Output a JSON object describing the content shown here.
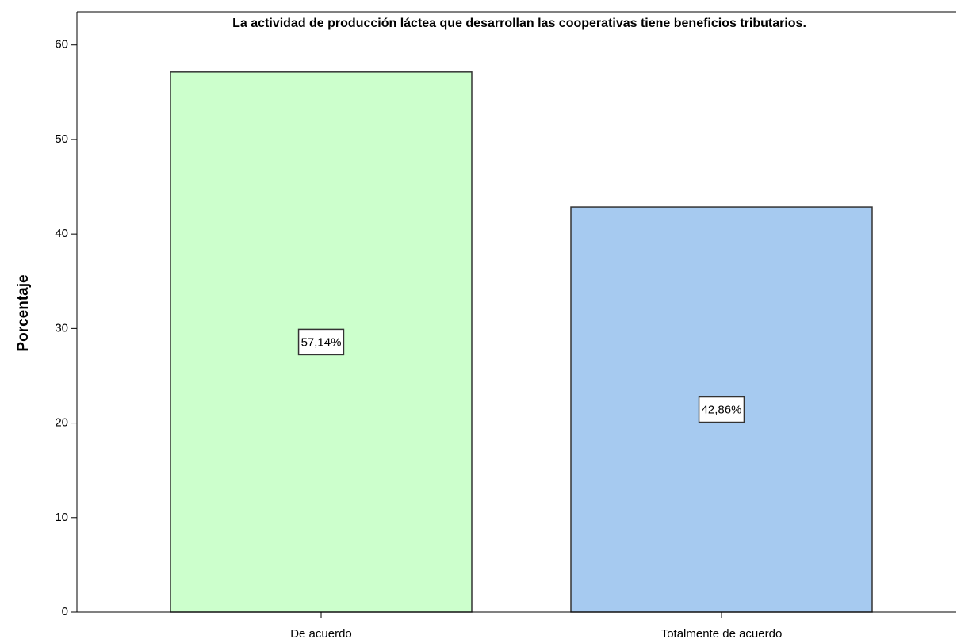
{
  "chart_data": {
    "type": "bar",
    "title": "La actividad de producción láctea que desarrollan las cooperativas tiene beneficios tributarios.",
    "y_label": "Porcentaje",
    "categories": [
      "De acuerdo",
      "Totalmente de acuerdo"
    ],
    "values": [
      57.14,
      42.86
    ],
    "value_labels": [
      "57,14%",
      "42,86%"
    ],
    "colors": [
      "#ccffcc",
      "#a6caf0"
    ],
    "ylim": [
      0,
      63.5
    ],
    "yticks": [
      0,
      10,
      20,
      30,
      40,
      50,
      60
    ],
    "grid": false
  }
}
